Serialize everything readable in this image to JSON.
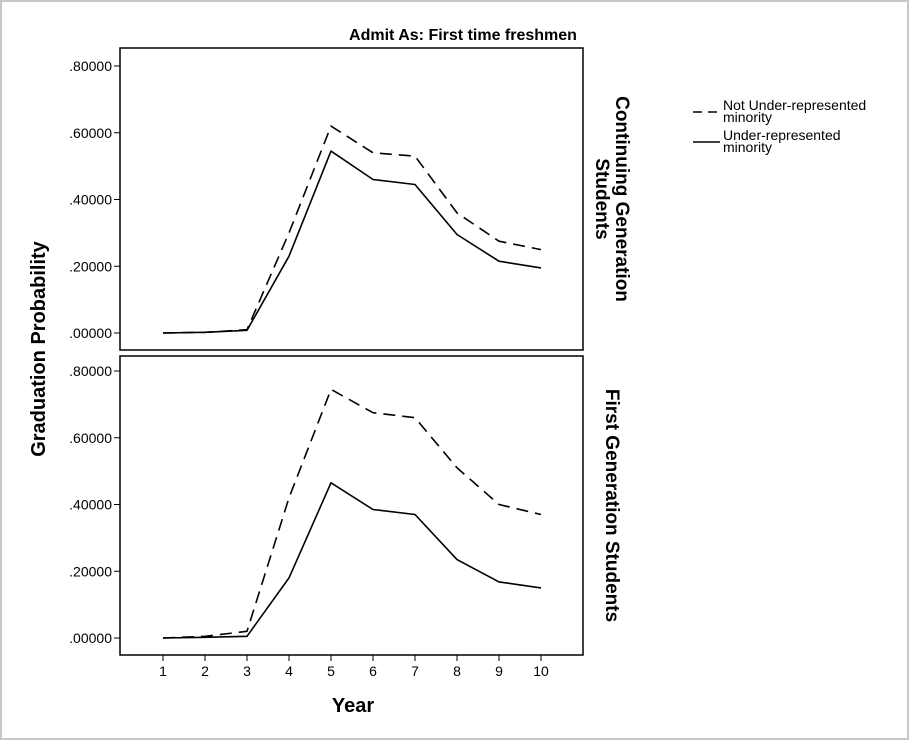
{
  "chart_data": {
    "type": "line",
    "title": "Admit As: First time freshmen",
    "xlabel": "Year",
    "ylabel": "Graduation Probability",
    "x": [
      1,
      2,
      3,
      4,
      5,
      6,
      7,
      8,
      9,
      10
    ],
    "x_tick_labels": [
      "1",
      "2",
      "3",
      "4",
      "5",
      "6",
      "7",
      "8",
      "9",
      "10"
    ],
    "ylim": [
      0,
      0.8
    ],
    "y_ticks": [
      0,
      0.2,
      0.4,
      0.6,
      0.8
    ],
    "y_tick_labels": [
      ".00000",
      ".20000",
      ".40000",
      ".60000",
      ".80000"
    ],
    "legend_position": "top-right",
    "grid": false,
    "series_meta": [
      {
        "name": "Not Under-represented minority",
        "name_lines": [
          "Not Under-represented",
          "minority"
        ],
        "style": "dashed",
        "color": "#000000"
      },
      {
        "name": "Under-represented minority",
        "name_lines": [
          "Under-represented",
          "minority"
        ],
        "style": "solid",
        "color": "#000000"
      }
    ],
    "panels": [
      {
        "label": "Continuing Generation Students",
        "label_lines": [
          "Continuing Generation",
          "Students"
        ],
        "series": [
          {
            "name": "Not Under-represented minority",
            "values": [
              0.0,
              0.002,
              0.01,
              0.3,
              0.62,
              0.54,
              0.53,
              0.36,
              0.275,
              0.25
            ]
          },
          {
            "name": "Under-represented minority",
            "values": [
              0.0,
              0.002,
              0.008,
              0.23,
              0.545,
              0.46,
              0.445,
              0.295,
              0.215,
              0.195
            ]
          }
        ]
      },
      {
        "label": "First Generation Students",
        "label_lines": [
          "First Generation Students"
        ],
        "series": [
          {
            "name": "Not Under-represented minority",
            "values": [
              0.0,
              0.005,
              0.02,
              0.42,
              0.745,
              0.675,
              0.66,
              0.51,
              0.4,
              0.37
            ]
          },
          {
            "name": "Under-represented minority",
            "values": [
              0.0,
              0.002,
              0.005,
              0.18,
              0.465,
              0.385,
              0.37,
              0.235,
              0.168,
              0.15
            ]
          }
        ]
      }
    ]
  }
}
